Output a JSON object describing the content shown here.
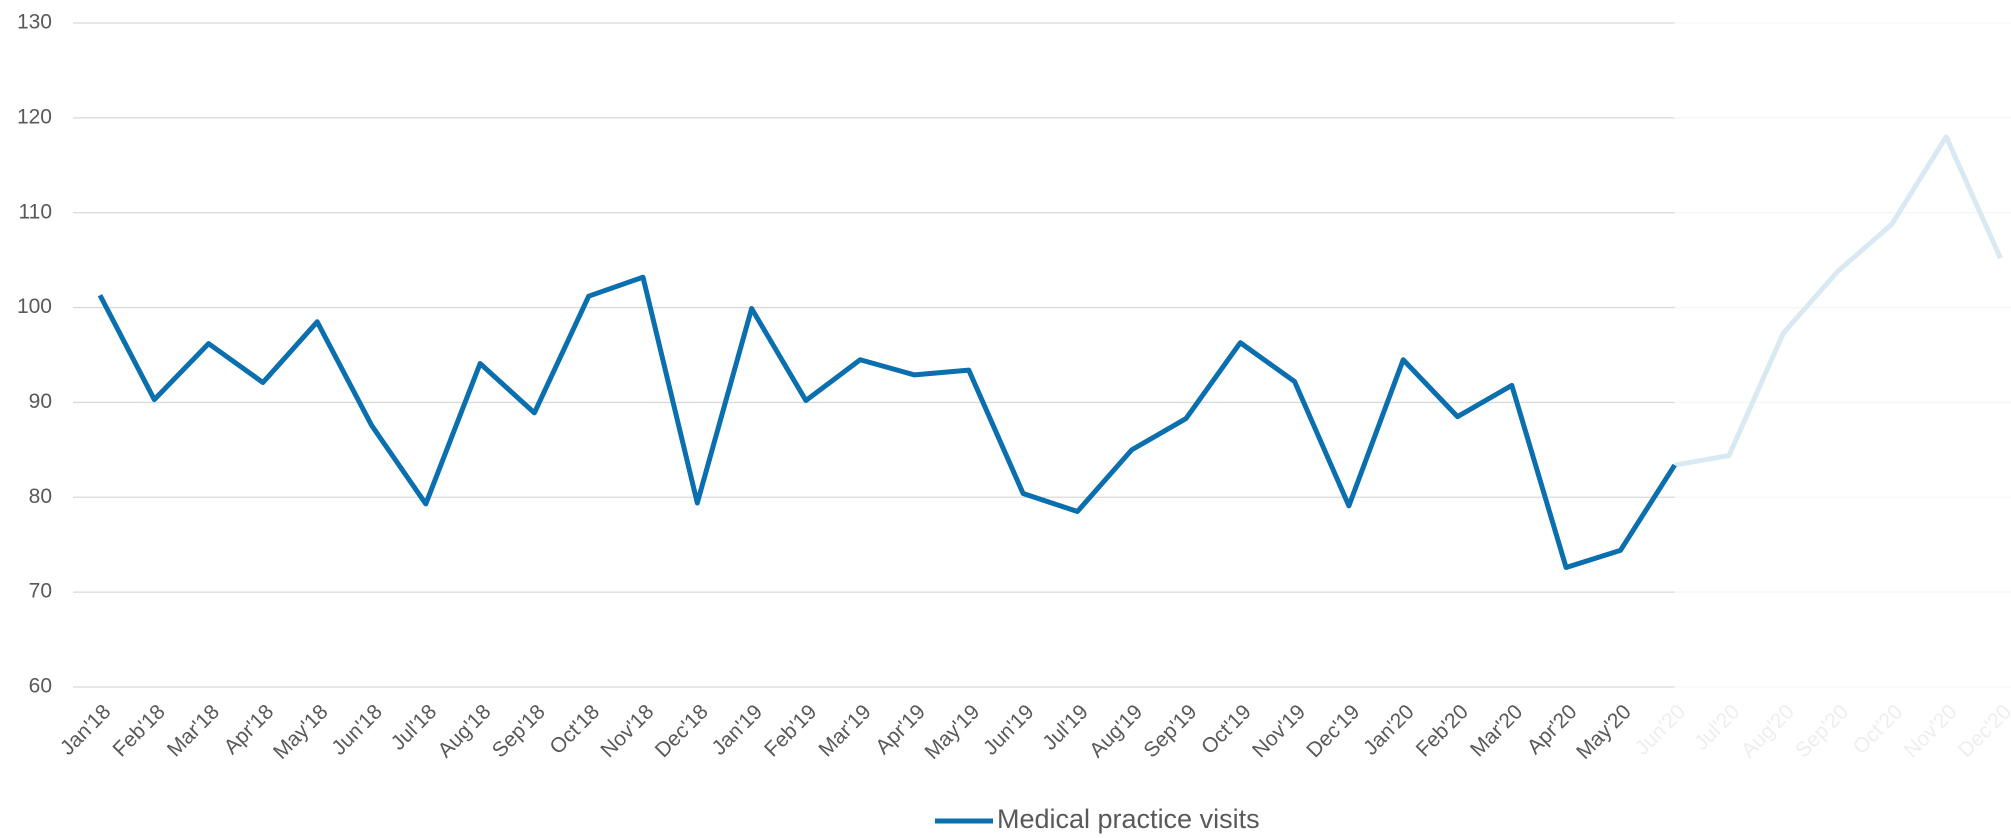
{
  "chart_data": {
    "type": "line",
    "categories": [
      "Jan'18",
      "Feb'18",
      "Mar'18",
      "Apr'18",
      "May'18",
      "Jun'18",
      "Jul'18",
      "Aug'18",
      "Sep'18",
      "Oct'18",
      "Nov'18",
      "Dec'18",
      "Jan'19",
      "Feb'19",
      "Mar'19",
      "Apr'19",
      "May'19",
      "Jun'19",
      "Jul'19",
      "Aug'19",
      "Sep'19",
      "Oct'19",
      "Nov'19",
      "Dec'19",
      "Jan'20",
      "Feb'20",
      "Mar'20",
      "Apr'20",
      "May'20",
      "Jun'20",
      "Jul'20",
      "Aug'20",
      "Sep'20",
      "Oct'20",
      "Nov'20",
      "Dec'20"
    ],
    "series": [
      {
        "name": "Medical practice visits",
        "color": "#0a6fae",
        "faded_color": "#d9e9f3",
        "values": [
          101.3,
          90.3,
          96.2,
          92.1,
          98.5,
          87.6,
          79.3,
          94.1,
          88.9,
          101.2,
          103.2,
          79.4,
          99.9,
          90.2,
          94.5,
          92.9,
          93.4,
          80.4,
          78.5,
          85.0,
          88.3,
          96.3,
          92.2,
          79.1,
          94.5,
          88.5,
          91.8,
          72.6,
          74.4,
          83.4,
          84.4,
          97.3,
          103.8,
          108.8,
          118.0,
          105.2
        ]
      }
    ],
    "faded_from": "Jun'20",
    "ylim": [
      60,
      130
    ],
    "yticks": [
      60,
      70,
      80,
      90,
      100,
      110,
      120,
      130
    ],
    "grid": true,
    "legend": "bottom"
  }
}
